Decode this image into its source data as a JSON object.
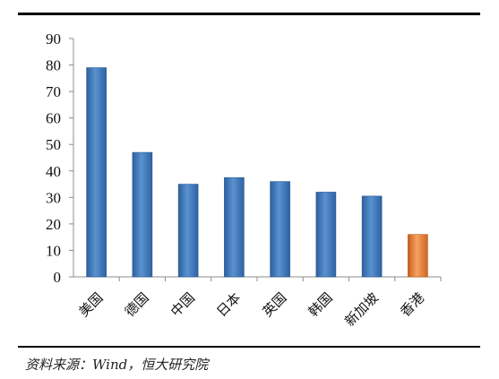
{
  "chart_data": {
    "type": "bar",
    "categories": [
      "美国",
      "德国",
      "中国",
      "日本",
      "英国",
      "韩国",
      "新加坡",
      "香港"
    ],
    "values": [
      79,
      47,
      35,
      37.5,
      36,
      32,
      30.5,
      16
    ],
    "ylim": [
      0,
      90
    ],
    "yticks": [
      0,
      10,
      20,
      30,
      40,
      50,
      60,
      70,
      80,
      90
    ],
    "grid": false,
    "colors": {
      "default_bar": "#3f79bd",
      "highlight_bar": "#e8782c",
      "highlight_category": "香港"
    }
  },
  "source": "资料来源：Wind，恒大研究院"
}
